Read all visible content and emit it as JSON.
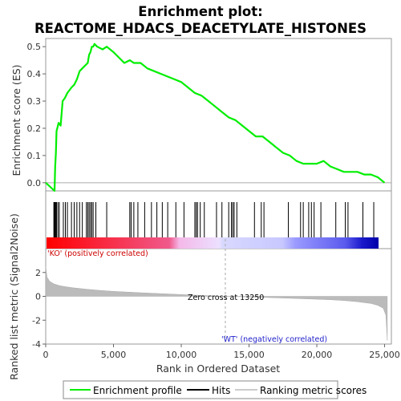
{
  "chart_data": {
    "type": "line",
    "title_line1": "Enrichment plot:",
    "title_line2": "REACTOME_HDACS_DEACETYLATE_HISTONES",
    "enrichment": {
      "ylabel": "Enrichment score (ES)",
      "ylim": [
        -0.03,
        0.53
      ],
      "yticks": [
        "0.0",
        "0.1",
        "0.2",
        "0.3",
        "0.4",
        "0.5"
      ],
      "ytick_values": [
        0.0,
        0.1,
        0.2,
        0.3,
        0.4,
        0.5
      ],
      "color": "#00ee00",
      "x": [
        0,
        650,
        700,
        750,
        800,
        850,
        950,
        1100,
        1250,
        1400,
        1600,
        1900,
        2100,
        2300,
        2500,
        2700,
        2900,
        3100,
        3200,
        3300,
        3400,
        3500,
        3600,
        3800,
        4200,
        4500,
        5000,
        5800,
        6200,
        6500,
        7000,
        7500,
        8000,
        8500,
        9000,
        9500,
        10000,
        10500,
        11000,
        11500,
        12000,
        12500,
        13000,
        13500,
        14000,
        14500,
        15000,
        15500,
        16000,
        16500,
        17000,
        17500,
        18000,
        18500,
        19000,
        19500,
        20000,
        20500,
        21000,
        21500,
        22000,
        22500,
        23000,
        23500,
        24000,
        24500,
        25000
      ],
      "y": [
        0.0,
        -0.03,
        0.06,
        0.11,
        0.19,
        0.2,
        0.22,
        0.21,
        0.3,
        0.31,
        0.33,
        0.35,
        0.36,
        0.38,
        0.41,
        0.42,
        0.43,
        0.44,
        0.47,
        0.48,
        0.5,
        0.5,
        0.51,
        0.5,
        0.49,
        0.5,
        0.48,
        0.44,
        0.45,
        0.44,
        0.44,
        0.42,
        0.41,
        0.4,
        0.39,
        0.38,
        0.37,
        0.35,
        0.33,
        0.32,
        0.3,
        0.28,
        0.26,
        0.24,
        0.23,
        0.21,
        0.19,
        0.17,
        0.17,
        0.15,
        0.13,
        0.11,
        0.1,
        0.08,
        0.07,
        0.07,
        0.07,
        0.08,
        0.06,
        0.05,
        0.04,
        0.04,
        0.04,
        0.03,
        0.03,
        0.02,
        0.0
      ]
    },
    "hits": [
      600,
      650,
      700,
      750,
      800,
      900,
      1000,
      1300,
      1450,
      1600,
      1900,
      2100,
      2300,
      2500,
      2700,
      3000,
      3100,
      3200,
      3300,
      3400,
      3500,
      3700,
      4500,
      6200,
      6300,
      6500,
      6800,
      7300,
      7800,
      8200,
      8600,
      9000,
      9600,
      10200,
      11000,
      11100,
      11200,
      11400,
      11700,
      12600,
      13000,
      13500,
      13700,
      13800,
      13900,
      14100,
      15400,
      15900,
      16100,
      17900,
      18800,
      19000,
      19400,
      19600,
      19800,
      20300,
      21400,
      22100,
      22300,
      23400,
      24200
    ],
    "ranked_metric": {
      "ylabel": "Ranked list metric (Signal2Noise)",
      "ylim": [
        -4,
        4
      ],
      "yticks": [
        "-4",
        "-2",
        "0",
        "2"
      ],
      "ytick_values": [
        -4,
        -2,
        0,
        2
      ],
      "x": [
        0,
        100,
        300,
        600,
        1000,
        1500,
        2000,
        3000,
        4000,
        5000,
        7000,
        9000,
        11000,
        13250,
        15000,
        17000,
        19000,
        21000,
        22000,
        23000,
        24000,
        24500,
        24900,
        25100,
        25200
      ],
      "y": [
        2.5,
        1.6,
        1.25,
        1.05,
        0.9,
        0.8,
        0.72,
        0.6,
        0.5,
        0.42,
        0.3,
        0.2,
        0.1,
        0.0,
        -0.05,
        -0.12,
        -0.2,
        -0.28,
        -0.35,
        -0.45,
        -0.6,
        -0.75,
        -1.0,
        -1.6,
        -3.7
      ]
    },
    "xlabel": "Rank in Ordered Dataset",
    "xlim": [
      0,
      25500
    ],
    "xticks": [
      "0",
      "5,000",
      "10,000",
      "15,000",
      "20,000",
      "25,000"
    ],
    "xtick_values": [
      0,
      5000,
      10000,
      15000,
      20000,
      25000
    ],
    "zero_cross_label": "Zero cross at 13250",
    "zero_cross": 13250,
    "ko_label": "'KO' (positively correlated)",
    "wt_label": "'WT' (negatively correlated)",
    "colors": {
      "ko": "#dd0000",
      "wt": "#2222cc",
      "hits": "#000000",
      "metric_fill": "#bbbbbb"
    },
    "legend": [
      {
        "label": "Enrichment profile",
        "color": "#00ee00"
      },
      {
        "label": "Hits",
        "color": "#000000"
      },
      {
        "label": "Ranking metric scores",
        "color": "#cccccc"
      }
    ]
  }
}
